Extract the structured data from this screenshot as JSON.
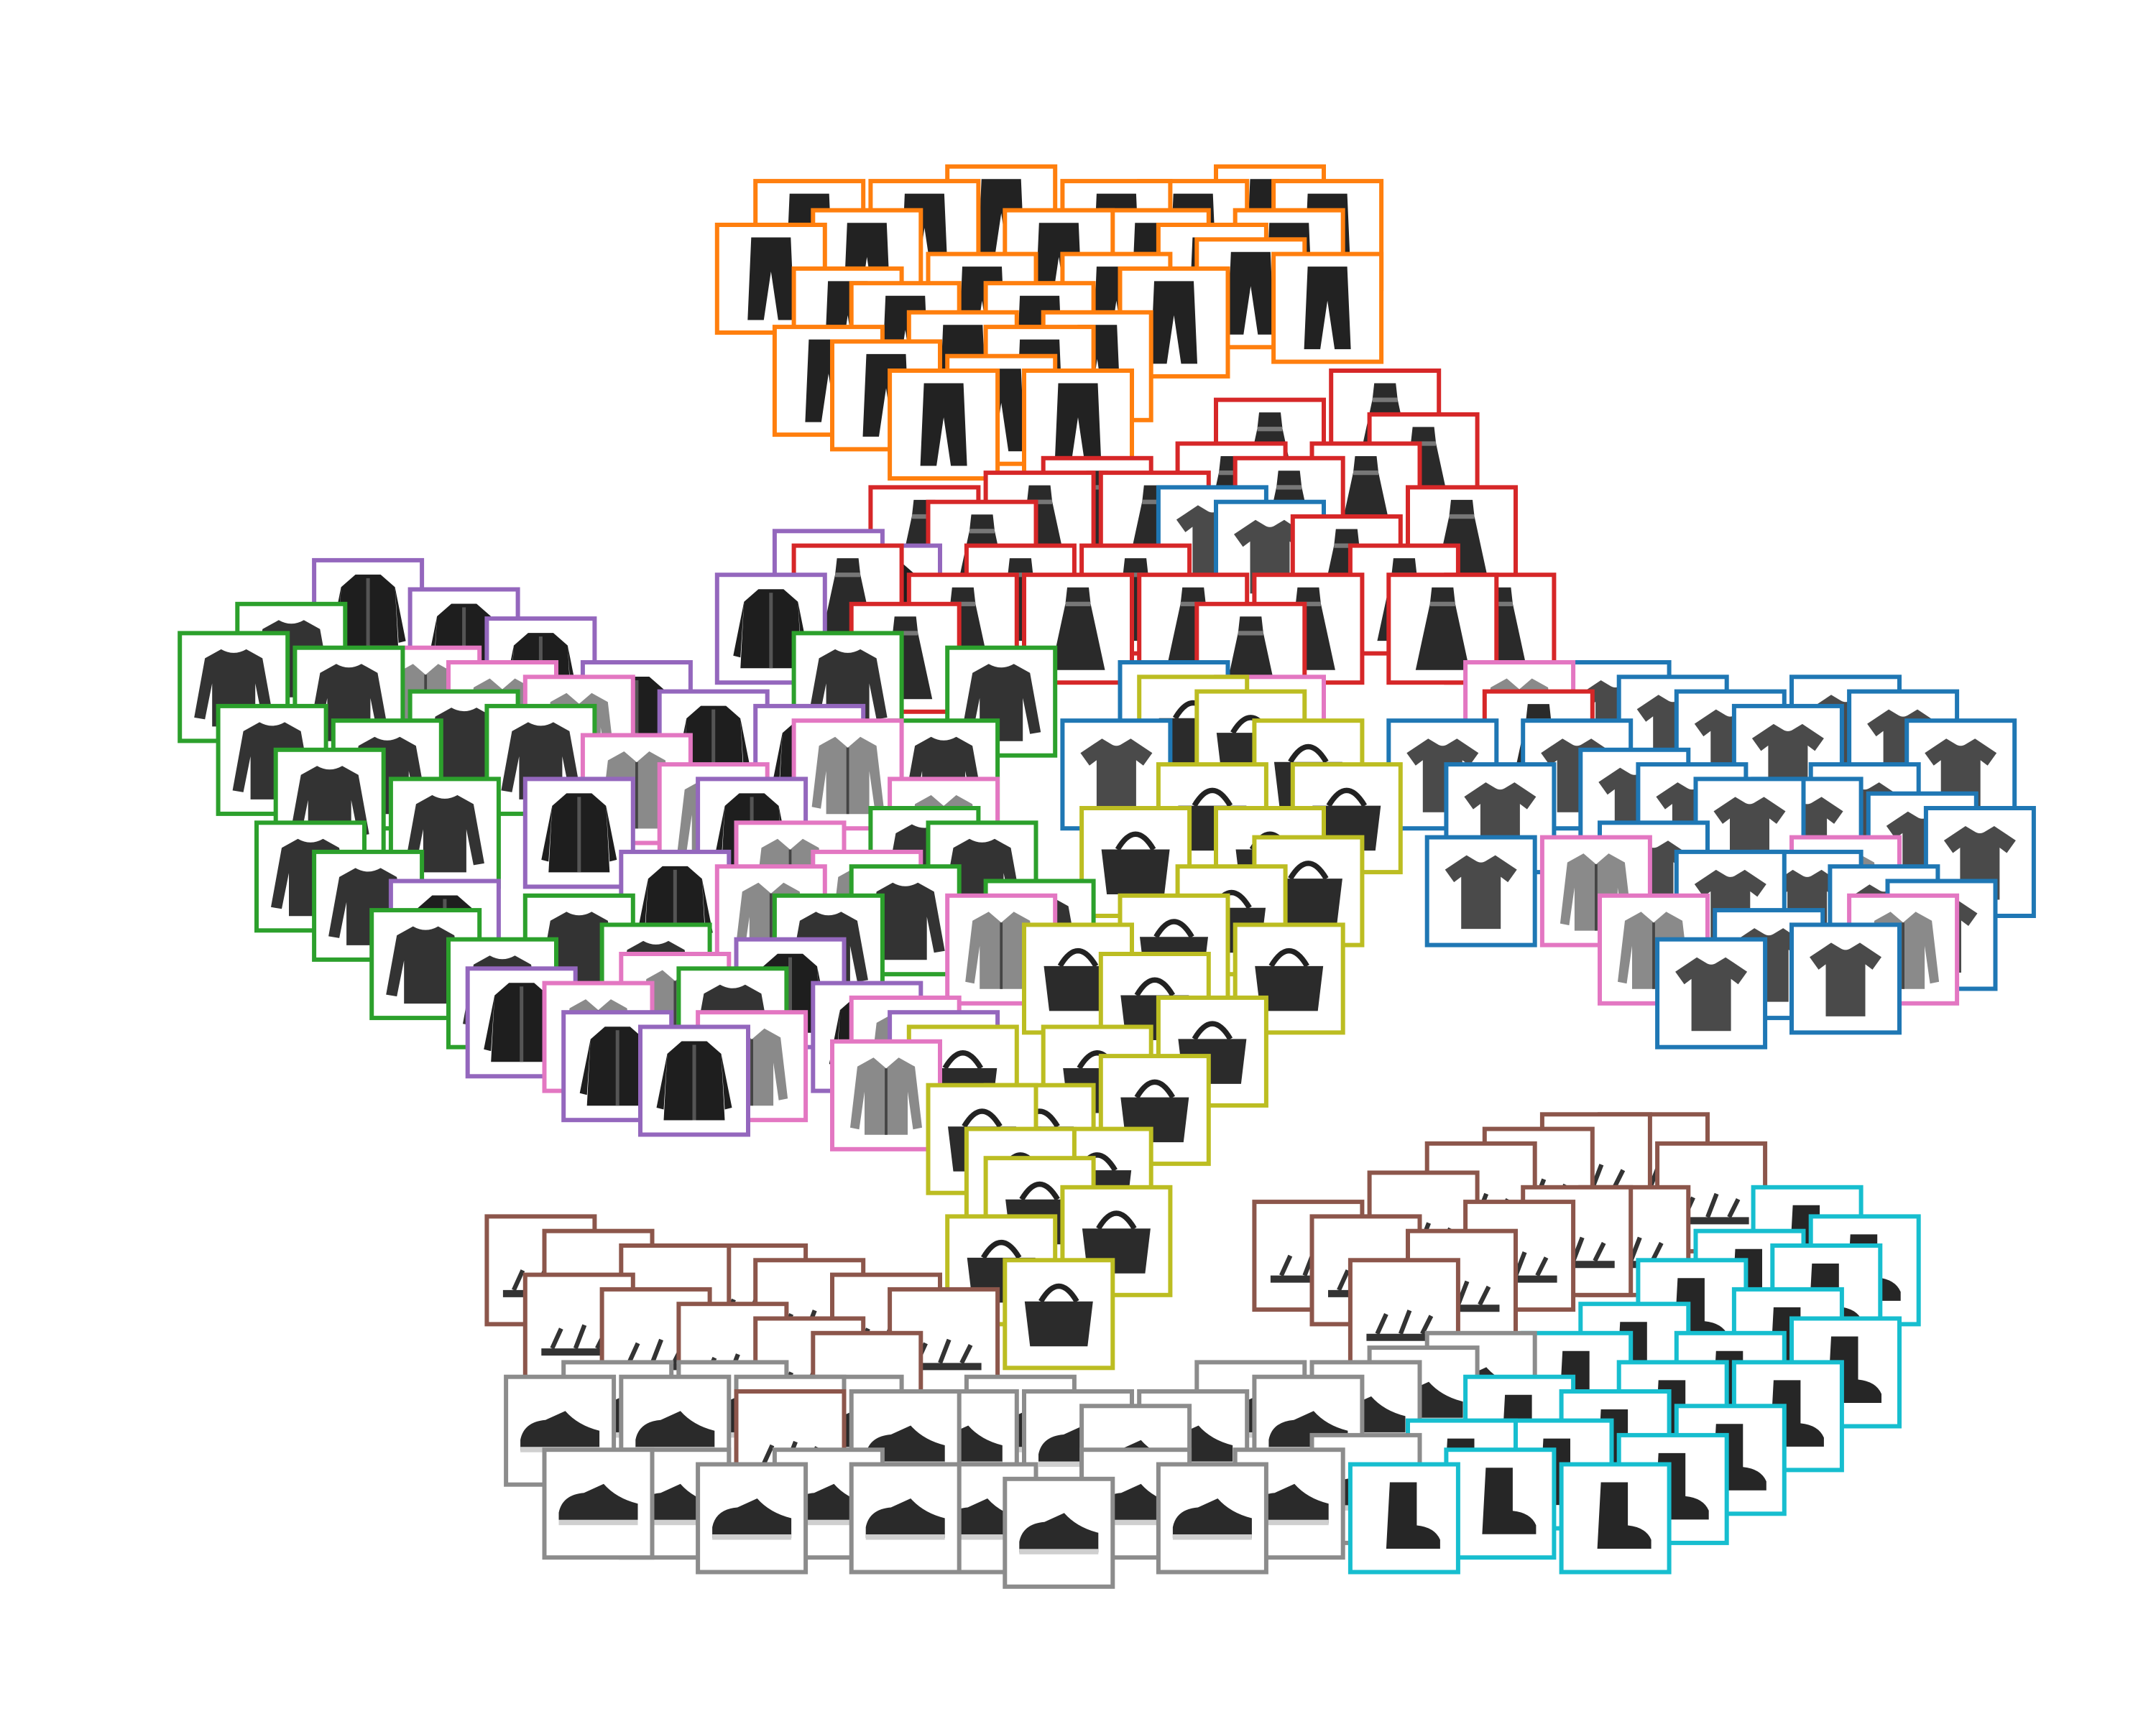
{
  "chart_data": {
    "type": "scatter",
    "title": "",
    "xlabel": "",
    "ylabel": "",
    "axes_visible": false,
    "legend": "none",
    "grid": false,
    "xlim": [
      0,
      100
    ],
    "ylim": [
      0,
      100
    ],
    "marker": "framed-thumbnail",
    "series": [
      {
        "id": "trouser",
        "color": "#ff7f0e",
        "icon": "trouser-icon",
        "thumbnails": [
          [
            36,
            93
          ],
          [
            39,
            91
          ],
          [
            42,
            93
          ],
          [
            46,
            94
          ],
          [
            49,
            91
          ],
          [
            52,
            93
          ],
          [
            56,
            93
          ],
          [
            60,
            94
          ],
          [
            63,
            93
          ],
          [
            38,
            87
          ],
          [
            41,
            86
          ],
          [
            45,
            88
          ],
          [
            48,
            86
          ],
          [
            52,
            88
          ],
          [
            55,
            87
          ],
          [
            59,
            89
          ],
          [
            37,
            83
          ],
          [
            40,
            82
          ],
          [
            44,
            84
          ],
          [
            48,
            83
          ],
          [
            51,
            84
          ],
          [
            34,
            90
          ],
          [
            57,
            90
          ],
          [
            61,
            91
          ],
          [
            46,
            81
          ],
          [
            50,
            80
          ],
          [
            43,
            80
          ],
          [
            63,
            88
          ],
          [
            54,
            91
          ]
        ]
      },
      {
        "id": "dress",
        "color": "#d62728",
        "icon": "dress-icon",
        "thumbnails": [
          [
            42,
            72
          ],
          [
            45,
            71
          ],
          [
            48,
            73
          ],
          [
            51,
            74
          ],
          [
            54,
            73
          ],
          [
            58,
            75
          ],
          [
            61,
            74
          ],
          [
            65,
            75
          ],
          [
            66,
            80
          ],
          [
            68,
            77
          ],
          [
            70,
            72
          ],
          [
            67,
            68
          ],
          [
            64,
            70
          ],
          [
            62,
            66
          ],
          [
            59,
            64
          ],
          [
            56,
            66
          ],
          [
            53,
            68
          ],
          [
            50,
            66
          ],
          [
            47,
            68
          ],
          [
            44,
            66
          ],
          [
            41,
            64
          ],
          [
            38,
            68
          ],
          [
            60,
            78
          ],
          [
            69,
            66
          ],
          [
            72,
            66
          ],
          [
            74,
            58
          ]
        ]
      },
      {
        "id": "tshirt",
        "color": "#1f77b4",
        "icon": "tshirt-icon",
        "thumbnails": [
          [
            78,
            60
          ],
          [
            81,
            59
          ],
          [
            84,
            58
          ],
          [
            87,
            57
          ],
          [
            90,
            59
          ],
          [
            93,
            58
          ],
          [
            96,
            56
          ],
          [
            79,
            54
          ],
          [
            82,
            53
          ],
          [
            85,
            52
          ],
          [
            88,
            52
          ],
          [
            91,
            53
          ],
          [
            94,
            51
          ],
          [
            97,
            50
          ],
          [
            80,
            49
          ],
          [
            84,
            47
          ],
          [
            88,
            47
          ],
          [
            92,
            46
          ],
          [
            95,
            45
          ],
          [
            86,
            43
          ],
          [
            90,
            42
          ],
          [
            72,
            53
          ],
          [
            69,
            56
          ],
          [
            52,
            56
          ],
          [
            55,
            60
          ],
          [
            57,
            72
          ],
          [
            60,
            71
          ],
          [
            76,
            56
          ],
          [
            71,
            48
          ],
          [
            83,
            41
          ]
        ]
      },
      {
        "id": "coat",
        "color": "#9467bd",
        "icon": "coat-icon",
        "thumbnails": [
          [
            13,
            67
          ],
          [
            18,
            65
          ],
          [
            22,
            63
          ],
          [
            27,
            60
          ],
          [
            31,
            58
          ],
          [
            34,
            66
          ],
          [
            37,
            69
          ],
          [
            40,
            68
          ],
          [
            24,
            52
          ],
          [
            17,
            45
          ],
          [
            21,
            39
          ],
          [
            26,
            36
          ],
          [
            30,
            35
          ],
          [
            35,
            41
          ],
          [
            39,
            38
          ],
          [
            43,
            36
          ],
          [
            29,
            47
          ],
          [
            33,
            52
          ],
          [
            36,
            57
          ]
        ]
      },
      {
        "id": "pullover",
        "color": "#2ca02c",
        "icon": "pullover-icon",
        "thumbnails": [
          [
            6,
            62
          ],
          [
            9,
            64
          ],
          [
            12,
            61
          ],
          [
            8,
            57
          ],
          [
            11,
            54
          ],
          [
            14,
            56
          ],
          [
            17,
            52
          ],
          [
            10,
            49
          ],
          [
            13,
            47
          ],
          [
            16,
            43
          ],
          [
            20,
            41
          ],
          [
            24,
            44
          ],
          [
            28,
            42
          ],
          [
            32,
            39
          ],
          [
            37,
            44
          ],
          [
            41,
            46
          ],
          [
            45,
            49
          ],
          [
            48,
            45
          ],
          [
            43,
            56
          ],
          [
            46,
            61
          ],
          [
            38,
            62
          ],
          [
            42,
            50
          ],
          [
            18,
            58
          ],
          [
            22,
            57
          ]
        ]
      },
      {
        "id": "shirt",
        "color": "#e377c2",
        "icon": "shirt-icon",
        "thumbnails": [
          [
            16,
            61
          ],
          [
            20,
            60
          ],
          [
            24,
            59
          ],
          [
            27,
            55
          ],
          [
            31,
            53
          ],
          [
            35,
            49
          ],
          [
            39,
            47
          ],
          [
            43,
            52
          ],
          [
            46,
            44
          ],
          [
            38,
            56
          ],
          [
            34,
            46
          ],
          [
            29,
            40
          ],
          [
            25,
            38
          ],
          [
            33,
            36
          ],
          [
            41,
            37
          ],
          [
            73,
            60
          ],
          [
            77,
            48
          ],
          [
            90,
            48
          ],
          [
            93,
            44
          ],
          [
            80,
            44
          ],
          [
            60,
            59
          ],
          [
            40,
            34
          ]
        ]
      },
      {
        "id": "bag",
        "color": "#bcbd22",
        "icon": "bag-icon",
        "thumbnails": [
          [
            56,
            59
          ],
          [
            59,
            58
          ],
          [
            62,
            56
          ],
          [
            64,
            53
          ],
          [
            57,
            53
          ],
          [
            60,
            50
          ],
          [
            53,
            50
          ],
          [
            55,
            44
          ],
          [
            58,
            46
          ],
          [
            61,
            42
          ],
          [
            54,
            40
          ],
          [
            57,
            37
          ],
          [
            51,
            35
          ],
          [
            54,
            33
          ],
          [
            48,
            31
          ],
          [
            51,
            28
          ],
          [
            45,
            31
          ],
          [
            48,
            26
          ],
          [
            52,
            24
          ],
          [
            46,
            22
          ],
          [
            49,
            19
          ],
          [
            47,
            28
          ],
          [
            44,
            35
          ],
          [
            50,
            42
          ],
          [
            62,
            48
          ]
        ]
      },
      {
        "id": "sandal",
        "color": "#8c564b",
        "icon": "sandal-icon",
        "thumbnails": [
          [
            22,
            22
          ],
          [
            25,
            21
          ],
          [
            29,
            20
          ],
          [
            33,
            20
          ],
          [
            36,
            19
          ],
          [
            40,
            18
          ],
          [
            43,
            17
          ],
          [
            24,
            18
          ],
          [
            28,
            17
          ],
          [
            32,
            16
          ],
          [
            36,
            15
          ],
          [
            39,
            14
          ],
          [
            62,
            23
          ],
          [
            65,
            22
          ],
          [
            68,
            25
          ],
          [
            71,
            27
          ],
          [
            74,
            28
          ],
          [
            77,
            29
          ],
          [
            80,
            29
          ],
          [
            83,
            27
          ],
          [
            67,
            19
          ],
          [
            70,
            21
          ],
          [
            73,
            23
          ],
          [
            76,
            24
          ],
          [
            79,
            24
          ],
          [
            35,
            10
          ]
        ]
      },
      {
        "id": "sneaker",
        "color": "#8c8c8c",
        "icon": "sneaker-icon",
        "thumbnails": [
          [
            23,
            11
          ],
          [
            26,
            12
          ],
          [
            29,
            11
          ],
          [
            32,
            12
          ],
          [
            35,
            11
          ],
          [
            38,
            11
          ],
          [
            41,
            10
          ],
          [
            44,
            10
          ],
          [
            47,
            11
          ],
          [
            50,
            10
          ],
          [
            53,
            9
          ],
          [
            56,
            10
          ],
          [
            59,
            12
          ],
          [
            62,
            11
          ],
          [
            65,
            12
          ],
          [
            68,
            13
          ],
          [
            71,
            14
          ],
          [
            25,
            6
          ],
          [
            29,
            6
          ],
          [
            33,
            5
          ],
          [
            37,
            6
          ],
          [
            41,
            5
          ],
          [
            45,
            5
          ],
          [
            49,
            4
          ],
          [
            53,
            6
          ],
          [
            57,
            5
          ],
          [
            61,
            6
          ],
          [
            65,
            7
          ]
        ]
      },
      {
        "id": "ankle-boot",
        "color": "#17becf",
        "icon": "boot-icon",
        "thumbnails": [
          [
            72,
            6
          ],
          [
            75,
            8
          ],
          [
            78,
            10
          ],
          [
            81,
            12
          ],
          [
            84,
            14
          ],
          [
            87,
            17
          ],
          [
            89,
            20
          ],
          [
            85,
            21
          ],
          [
            82,
            19
          ],
          [
            79,
            16
          ],
          [
            76,
            14
          ],
          [
            73,
            11
          ],
          [
            70,
            8
          ],
          [
            67,
            5
          ],
          [
            78,
            5
          ],
          [
            81,
            7
          ],
          [
            84,
            9
          ],
          [
            87,
            12
          ],
          [
            90,
            15
          ],
          [
            91,
            22
          ],
          [
            88,
            24
          ]
        ]
      }
    ]
  }
}
